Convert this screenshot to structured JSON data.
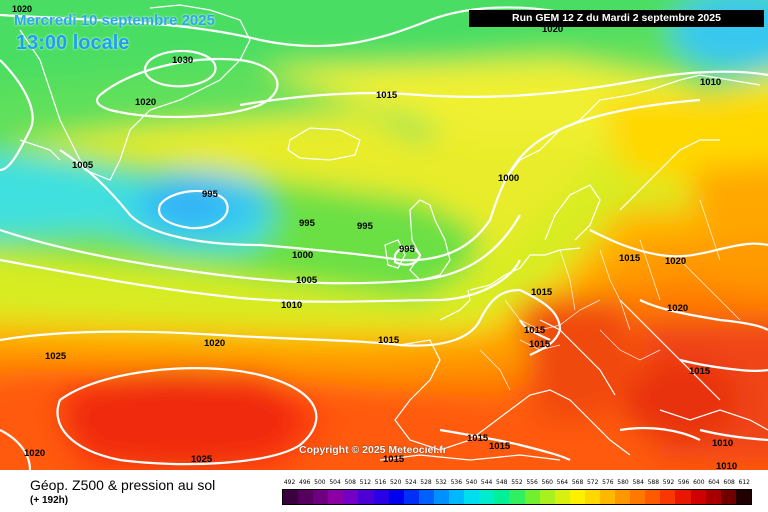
{
  "header": {
    "date_line": "Mercredi 10 septembre 2025",
    "time_line": "13:00 locale",
    "top_corner_label": "1020",
    "run_info": "Run GEM 12 Z du Mardi 2 septembre 2025"
  },
  "copyright": "Copyright © 2025 Meteociel.fr",
  "footer": {
    "title": "Géop. Z500 & pression au sol",
    "subtitle": "(+ 192h)"
  },
  "isobar_labels": [
    "1030",
    "1020",
    "1015",
    "1020",
    "1010",
    "1005",
    "995",
    "995",
    "995",
    "995",
    "1000",
    "1005",
    "1010",
    "1000",
    "1015",
    "1020",
    "1015",
    "1015",
    "1015",
    "1020",
    "1025",
    "1020",
    "1015",
    "1020",
    "1025",
    "1015",
    "1015",
    "1010",
    "1010"
  ],
  "color_scale": {
    "labels": [
      "492",
      "496",
      "500",
      "504",
      "508",
      "512",
      "516",
      "520",
      "524",
      "528",
      "532",
      "536",
      "540",
      "544",
      "548",
      "552",
      "556",
      "560",
      "564",
      "568",
      "572",
      "576",
      "580",
      "584",
      "588",
      "592",
      "596",
      "600",
      "604",
      "608",
      "612"
    ],
    "colors": [
      "#3a0040",
      "#55005e",
      "#6e0080",
      "#8a00a4",
      "#7300c4",
      "#4d00d4",
      "#2a00e4",
      "#0000f0",
      "#0030f8",
      "#0060ff",
      "#0090ff",
      "#00b8ff",
      "#00dcf0",
      "#00eccc",
      "#00f09a",
      "#30f060",
      "#70f030",
      "#a8f020",
      "#d8f010",
      "#fff000",
      "#ffd800",
      "#ffb800",
      "#ff9800",
      "#ff7800",
      "#ff5a00",
      "#f83800",
      "#e81800",
      "#d00000",
      "#a80000",
      "#700000",
      "#200000"
    ]
  }
}
